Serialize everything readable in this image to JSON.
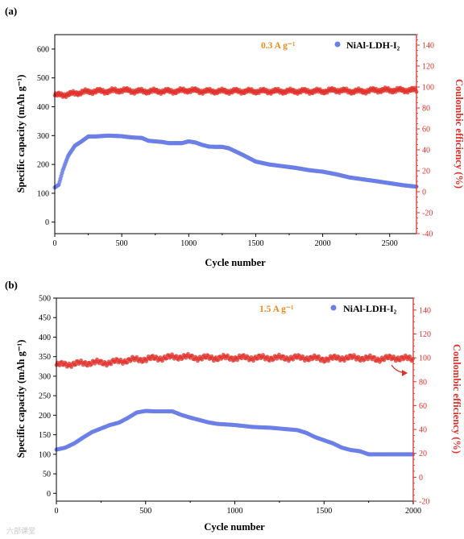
{
  "chart_data": [
    {
      "type": "scatter",
      "panel_label": "(a)",
      "rate_label": "0.3 A g⁻¹",
      "legend": "NiAl-LDH-I₂",
      "xlabel": "Cycle number",
      "ylabel_left": "Specific capacity (mAh g⁻¹)",
      "ylabel_right": "Coulombic efficiency (%)",
      "xlim": [
        0,
        2700
      ],
      "ylim_left": [
        -40,
        650
      ],
      "ylim_right": [
        -40,
        150
      ],
      "xticks": [
        "0",
        "500",
        "1000",
        "1500",
        "2000",
        "2500"
      ],
      "xtick_values": [
        0,
        500,
        1000,
        1500,
        2000,
        2500
      ],
      "yticks_left": [
        "0",
        "100",
        "200",
        "300",
        "400",
        "500",
        "600"
      ],
      "ytick_values_left": [
        0,
        100,
        200,
        300,
        400,
        500,
        600
      ],
      "yticks_right": [
        "-40",
        "-20",
        "0",
        "20",
        "40",
        "60",
        "80",
        "100",
        "120",
        "140"
      ],
      "ytick_values_right": [
        -40,
        -20,
        0,
        20,
        40,
        60,
        80,
        100,
        120,
        140
      ],
      "grid": false,
      "legend_position": "top-right",
      "series": [
        {
          "axis": "left",
          "color": "#6b7fe6",
          "x": [
            0,
            30,
            60,
            100,
            150,
            200,
            250,
            300,
            400,
            500,
            550,
            600,
            650,
            700,
            800,
            850,
            900,
            950,
            1000,
            1050,
            1100,
            1150,
            1200,
            1250,
            1300,
            1400,
            1500,
            1600,
            1800,
            1900,
            2000,
            2100,
            2200,
            2400,
            2600,
            2700
          ],
          "y": [
            120,
            130,
            180,
            230,
            265,
            280,
            297,
            297,
            300,
            298,
            295,
            293,
            292,
            282,
            278,
            274,
            274,
            274,
            280,
            276,
            268,
            262,
            261,
            261,
            256,
            234,
            210,
            200,
            188,
            180,
            175,
            166,
            155,
            142,
            128,
            123
          ]
        },
        {
          "axis": "right",
          "color": "#e0302a",
          "x": [
            0,
            100,
            200,
            300,
            400,
            500,
            600,
            700,
            800,
            900,
            1000,
            1100,
            1200,
            1300,
            1400,
            1500,
            1600,
            1700,
            1800,
            1900,
            2000,
            2100,
            2200,
            2300,
            2400,
            2500,
            2600,
            2700
          ],
          "y": [
            92,
            93,
            95,
            96,
            96,
            97,
            96,
            96,
            96,
            96,
            97,
            96,
            96,
            96,
            96,
            96,
            96,
            96,
            96,
            96,
            96,
            97,
            96,
            96,
            97,
            97,
            97,
            97
          ]
        }
      ]
    },
    {
      "type": "scatter",
      "panel_label": "(b)",
      "rate_label": "1.5 A g⁻¹",
      "legend": "NiAl-LDH-I₂",
      "xlabel": "Cycle number",
      "ylabel_left": "Specific capacity (mAh g⁻¹)",
      "ylabel_right": "Coulombic efficiency (%)",
      "xlim": [
        0,
        2000
      ],
      "ylim_left": [
        -20,
        500
      ],
      "ylim_right": [
        -20,
        150
      ],
      "xticks": [
        "0",
        "500",
        "1000",
        "1500",
        "2000"
      ],
      "xtick_values": [
        0,
        500,
        1000,
        1500,
        2000
      ],
      "yticks_left": [
        "0",
        "50",
        "100",
        "150",
        "200",
        "250",
        "300",
        "350",
        "400",
        "450",
        "500"
      ],
      "ytick_values_left": [
        0,
        50,
        100,
        150,
        200,
        250,
        300,
        350,
        400,
        450,
        500
      ],
      "yticks_right": [
        "-20",
        "0",
        "20",
        "40",
        "60",
        "80",
        "100",
        "120",
        "140"
      ],
      "ytick_values_right": [
        -20,
        0,
        20,
        40,
        60,
        80,
        100,
        120,
        140
      ],
      "grid": false,
      "legend_position": "top-right",
      "series": [
        {
          "axis": "left",
          "color": "#6b7fe6",
          "x": [
            0,
            50,
            100,
            150,
            200,
            250,
            300,
            350,
            400,
            450,
            500,
            550,
            600,
            650,
            700,
            750,
            800,
            850,
            900,
            1000,
            1100,
            1150,
            1200,
            1300,
            1350,
            1400,
            1450,
            1500,
            1550,
            1600,
            1650,
            1700,
            1750,
            1800,
            1900,
            2000
          ],
          "y": [
            112,
            117,
            128,
            143,
            157,
            166,
            175,
            181,
            193,
            207,
            211,
            210,
            210,
            210,
            201,
            194,
            188,
            182,
            178,
            175,
            170,
            169,
            168,
            164,
            162,
            155,
            144,
            136,
            128,
            117,
            111,
            108,
            100,
            100,
            100,
            100
          ]
        },
        {
          "axis": "right",
          "color": "#e0302a",
          "x": [
            0,
            100,
            200,
            300,
            400,
            500,
            600,
            700,
            800,
            900,
            1000,
            1100,
            1200,
            1300,
            1400,
            1500,
            1600,
            1700,
            1800,
            1900,
            2000
          ],
          "y": [
            94,
            95,
            96,
            96,
            98,
            99,
            100,
            101,
            100,
            100,
            100,
            100,
            100,
            100,
            100,
            99,
            100,
            100,
            99,
            100,
            99
          ]
        }
      ]
    }
  ],
  "watermark": "六部课堂"
}
